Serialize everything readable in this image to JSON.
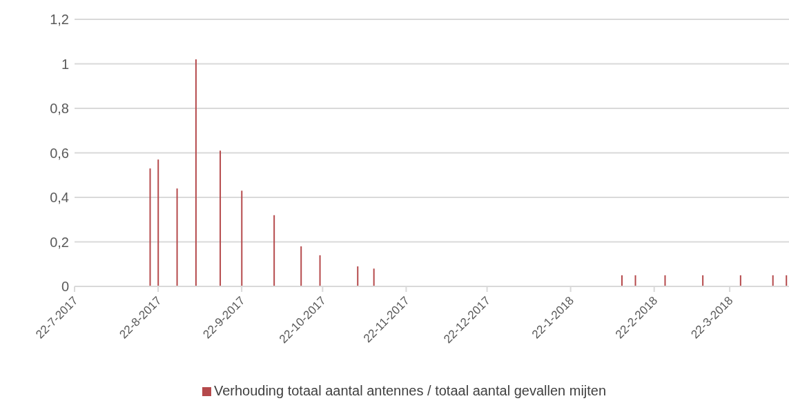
{
  "chart_data": {
    "type": "bar",
    "x": [
      "2017-08-19",
      "2017-08-22",
      "2017-08-29",
      "2017-09-05",
      "2017-09-14",
      "2017-09-22",
      "2017-10-04",
      "2017-10-14",
      "2017-10-21",
      "2017-11-04",
      "2017-11-10",
      "2018-02-10",
      "2018-02-15",
      "2018-02-26",
      "2018-03-12",
      "2018-03-26",
      "2018-04-07",
      "2018-04-12"
    ],
    "series": [
      {
        "name": "Verhouding totaal aantal antennes / totaal aantal gevallen mijten",
        "color": "#b5494b",
        "values": [
          0.53,
          0.57,
          0.44,
          1.02,
          0.61,
          0.43,
          0.32,
          0.18,
          0.14,
          0.09,
          0.08,
          0.05,
          0.05,
          0.05,
          0.05,
          0.05,
          0.05,
          0.05
        ]
      }
    ],
    "xlim": [
      "2017-07-22",
      "2018-04-13"
    ],
    "xticks": [
      {
        "value": "2017-07-22",
        "label": "22-7-2017"
      },
      {
        "value": "2017-08-22",
        "label": "22-8-2017"
      },
      {
        "value": "2017-09-22",
        "label": "22-9-2017"
      },
      {
        "value": "2017-10-22",
        "label": "22-10-2017"
      },
      {
        "value": "2017-11-22",
        "label": "22-11-2017"
      },
      {
        "value": "2017-12-22",
        "label": "22-12-2017"
      },
      {
        "value": "2018-01-22",
        "label": "22-1-2018"
      },
      {
        "value": "2018-02-22",
        "label": "22-2-2018"
      },
      {
        "value": "2018-03-22",
        "label": "22-3-2018"
      }
    ],
    "ylim": [
      0,
      1.2
    ],
    "yticks": [
      0,
      {
        "value": 0.2,
        "label": "0,2"
      },
      {
        "value": 0.4,
        "label": "0,4"
      },
      {
        "value": 0.6,
        "label": "0,6"
      },
      {
        "value": 0.8,
        "label": "0,8"
      },
      1,
      {
        "value": 1.2,
        "label": "1,2"
      }
    ],
    "grid": "y",
    "legend": "bottom"
  }
}
